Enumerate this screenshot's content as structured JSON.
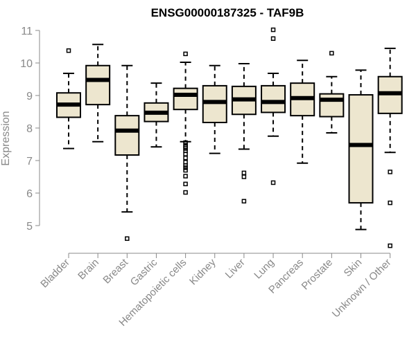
{
  "chart_data": {
    "type": "boxplot",
    "title": "ENSG00000187325 - TAF9B",
    "xlabel": "",
    "ylabel": "Expression",
    "ylim": [
      4.4,
      11.0
    ],
    "yticks": [
      5,
      6,
      7,
      8,
      9,
      10,
      11
    ],
    "box_color": "#ede6cf",
    "categories": [
      "Bladder",
      "Brain",
      "Breast",
      "Gastric",
      "Hematopoietic cells",
      "Kidney",
      "Liver",
      "Lung",
      "Pancreas",
      "Prostate",
      "Skin",
      "Unknown / Other"
    ],
    "boxes": [
      {
        "label": "Bladder",
        "whisker_low": 7.37,
        "q1": 8.33,
        "median": 8.72,
        "q3": 9.08,
        "whisker_high": 9.68,
        "outliers": [
          10.38
        ]
      },
      {
        "label": "Brain",
        "whisker_low": 7.58,
        "q1": 8.72,
        "median": 9.48,
        "q3": 9.92,
        "whisker_high": 10.57,
        "outliers": []
      },
      {
        "label": "Breast",
        "whisker_low": 5.42,
        "q1": 7.17,
        "median": 7.92,
        "q3": 8.38,
        "whisker_high": 9.92,
        "outliers": [
          4.6
        ]
      },
      {
        "label": "Gastric",
        "whisker_low": 7.42,
        "q1": 8.2,
        "median": 8.47,
        "q3": 8.77,
        "whisker_high": 9.38,
        "outliers": []
      },
      {
        "label": "Hematopoietic cells",
        "whisker_low": 7.58,
        "q1": 8.57,
        "median": 9.02,
        "q3": 9.22,
        "whisker_high": 10.02,
        "outliers": [
          10.28,
          7.55,
          7.47,
          7.42,
          7.37,
          7.3,
          7.2,
          7.08,
          6.95,
          6.85,
          6.78,
          6.7,
          6.52,
          6.28,
          6.02
        ]
      },
      {
        "label": "Kidney",
        "whisker_low": 7.22,
        "q1": 8.17,
        "median": 8.8,
        "q3": 9.3,
        "whisker_high": 9.92,
        "outliers": []
      },
      {
        "label": "Liver",
        "whisker_low": 7.35,
        "q1": 8.42,
        "median": 8.88,
        "q3": 9.28,
        "whisker_high": 9.98,
        "outliers": [
          6.62,
          6.5,
          5.75
        ]
      },
      {
        "label": "Lung",
        "whisker_low": 7.75,
        "q1": 8.48,
        "median": 8.8,
        "q3": 9.3,
        "whisker_high": 9.68,
        "outliers": [
          11.02,
          10.75,
          6.32
        ]
      },
      {
        "label": "Pancreas",
        "whisker_low": 6.92,
        "q1": 8.38,
        "median": 8.92,
        "q3": 9.38,
        "whisker_high": 10.08,
        "outliers": []
      },
      {
        "label": "Prostate",
        "whisker_low": 7.85,
        "q1": 8.35,
        "median": 8.87,
        "q3": 9.05,
        "whisker_high": 9.58,
        "outliers": [
          10.3
        ]
      },
      {
        "label": "Skin",
        "whisker_low": 4.88,
        "q1": 5.7,
        "median": 7.48,
        "q3": 9.02,
        "whisker_high": 9.78,
        "outliers": []
      },
      {
        "label": "Unknown / Other",
        "whisker_low": 7.25,
        "q1": 8.45,
        "median": 9.07,
        "q3": 9.58,
        "whisker_high": 10.45,
        "outliers": [
          6.65,
          5.7,
          4.38
        ]
      }
    ]
  }
}
